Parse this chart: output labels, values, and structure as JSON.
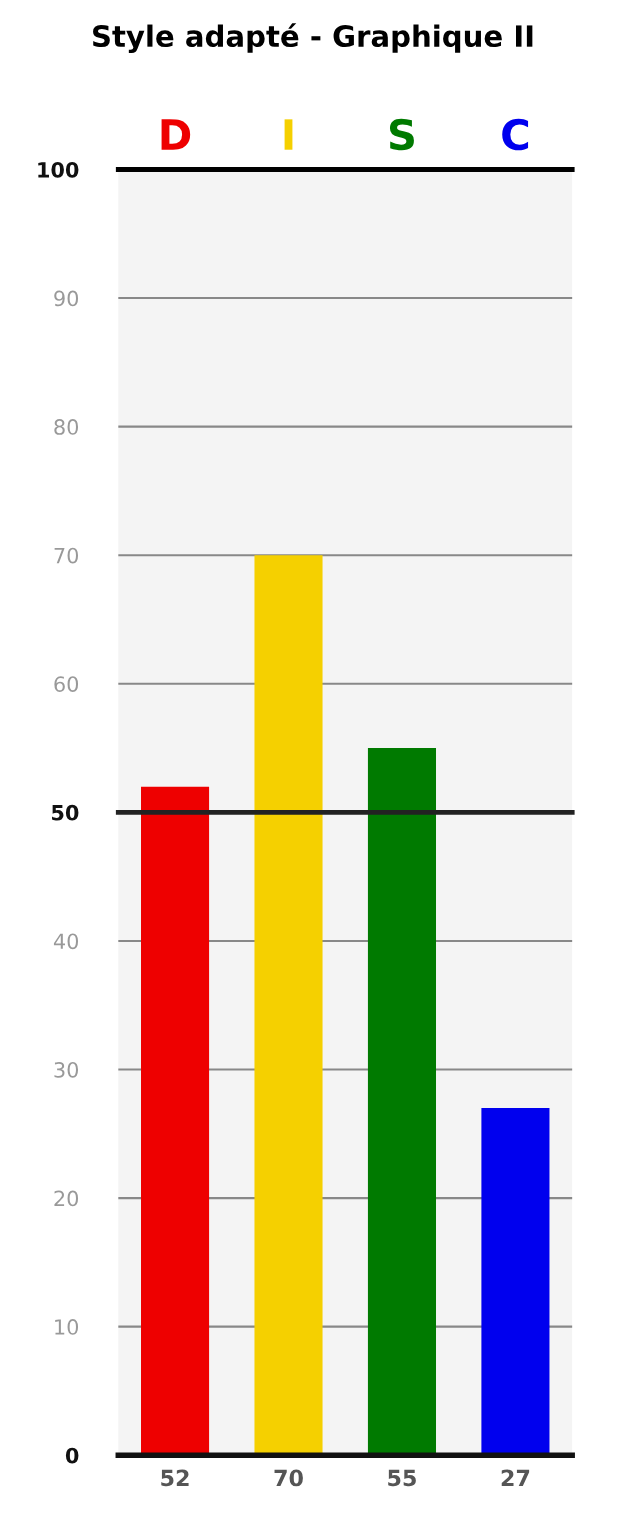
{
  "chart_data": {
    "type": "bar",
    "title": "Style adapté - Graphique II",
    "categories": [
      "D",
      "I",
      "S",
      "C"
    ],
    "values": [
      52,
      70,
      55,
      27
    ],
    "colors": [
      "#ee0000",
      "#f5d000",
      "#007a00",
      "#0000ee"
    ],
    "ylim": [
      0,
      100
    ],
    "yticks": [
      0,
      10,
      20,
      30,
      40,
      50,
      60,
      70,
      80,
      90,
      100
    ],
    "grid": "y",
    "data_labels": true,
    "ref_lines": [
      {
        "axis": "y",
        "value": 50,
        "color": "#222222"
      }
    ]
  }
}
